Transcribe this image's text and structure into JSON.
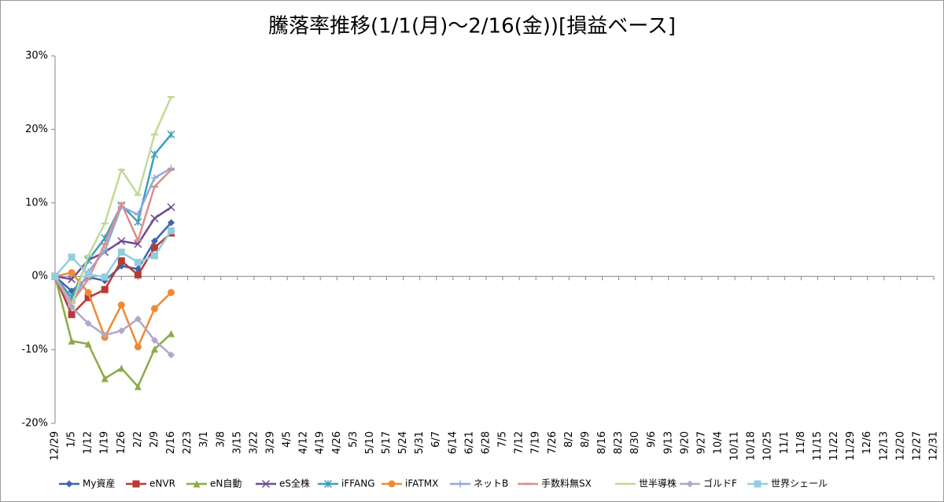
{
  "chart_data": {
    "type": "line",
    "title": "騰落率推移(1/1(月)～2/16(金))[損益ベース]",
    "categories": [
      "12/29",
      "1/5",
      "1/12",
      "1/19",
      "1/26",
      "2/2",
      "2/9",
      "2/16",
      "2/23",
      "3/1",
      "3/8",
      "3/15",
      "3/22",
      "3/29",
      "4/5",
      "4/12",
      "4/19",
      "4/26",
      "5/3",
      "5/10",
      "5/17",
      "5/24",
      "5/31",
      "6/7",
      "6/14",
      "6/21",
      "6/28",
      "7/5",
      "7/12",
      "7/19",
      "7/26",
      "8/2",
      "8/9",
      "8/16",
      "8/23",
      "8/30",
      "9/6",
      "9/13",
      "9/20",
      "9/27",
      "10/4",
      "10/11",
      "10/18",
      "10/25",
      "11/1",
      "11/8",
      "11/15",
      "11/22",
      "11/29",
      "12/6",
      "12/13",
      "12/20",
      "12/27",
      "12/31"
    ],
    "ylim": [
      -20,
      30
    ],
    "yticks": [
      {
        "value": -20,
        "label": "-20%"
      },
      {
        "value": -10,
        "label": "-10%"
      },
      {
        "value": 0,
        "label": "0%"
      },
      {
        "value": 10,
        "label": "10%"
      },
      {
        "value": 20,
        "label": "20%"
      },
      {
        "value": 30,
        "label": "30%"
      }
    ],
    "legend": "bottom",
    "series": [
      {
        "name": "My資産",
        "color": "#3a66b0",
        "marker": "diamond",
        "values": [
          0,
          -2.0,
          -0.1,
          -0.6,
          1.4,
          1.0,
          4.8,
          7.3,
          null,
          null,
          null,
          null,
          null,
          null,
          null,
          null,
          null,
          null,
          null,
          null,
          null,
          null,
          null,
          null,
          null,
          null,
          null,
          null,
          null,
          null,
          null,
          null,
          null,
          null,
          null,
          null,
          null,
          null,
          null,
          null,
          null,
          null,
          null,
          null,
          null,
          null,
          null,
          null,
          null,
          null,
          null,
          null,
          null,
          null
        ]
      },
      {
        "name": "eNVR",
        "color": "#b83a36",
        "marker": "square",
        "values": [
          0,
          -5.2,
          -2.9,
          -1.8,
          2.1,
          0.2,
          3.9,
          5.9,
          null,
          null,
          null,
          null,
          null,
          null,
          null,
          null,
          null,
          null,
          null,
          null,
          null,
          null,
          null,
          null,
          null,
          null,
          null,
          null,
          null,
          null,
          null,
          null,
          null,
          null,
          null,
          null,
          null,
          null,
          null,
          null,
          null,
          null,
          null,
          null,
          null,
          null,
          null,
          null,
          null,
          null,
          null,
          null,
          null,
          null
        ]
      },
      {
        "name": "eN自動",
        "color": "#8aac45",
        "marker": "triangle",
        "values": [
          0,
          -8.8,
          -9.2,
          -13.9,
          -12.5,
          -15.0,
          -9.9,
          -7.8,
          null,
          null,
          null,
          null,
          null,
          null,
          null,
          null,
          null,
          null,
          null,
          null,
          null,
          null,
          null,
          null,
          null,
          null,
          null,
          null,
          null,
          null,
          null,
          null,
          null,
          null,
          null,
          null,
          null,
          null,
          null,
          null,
          null,
          null,
          null,
          null,
          null,
          null,
          null,
          null,
          null,
          null,
          null,
          null,
          null,
          null
        ]
      },
      {
        "name": "eS全株",
        "color": "#6e4b94",
        "marker": "x",
        "values": [
          0,
          -0.4,
          2.2,
          3.3,
          4.8,
          4.4,
          7.9,
          9.4,
          null,
          null,
          null,
          null,
          null,
          null,
          null,
          null,
          null,
          null,
          null,
          null,
          null,
          null,
          null,
          null,
          null,
          null,
          null,
          null,
          null,
          null,
          null,
          null,
          null,
          null,
          null,
          null,
          null,
          null,
          null,
          null,
          null,
          null,
          null,
          null,
          null,
          null,
          null,
          null,
          null,
          null,
          null,
          null,
          null,
          null
        ]
      },
      {
        "name": "iFFANG",
        "color": "#3aa0bb",
        "marker": "star",
        "values": [
          0,
          -2.9,
          2.2,
          5.2,
          9.7,
          7.4,
          16.6,
          19.3,
          null,
          null,
          null,
          null,
          null,
          null,
          null,
          null,
          null,
          null,
          null,
          null,
          null,
          null,
          null,
          null,
          null,
          null,
          null,
          null,
          null,
          null,
          null,
          null,
          null,
          null,
          null,
          null,
          null,
          null,
          null,
          null,
          null,
          null,
          null,
          null,
          null,
          null,
          null,
          null,
          null,
          null,
          null,
          null,
          null,
          null
        ]
      },
      {
        "name": "iFATMX",
        "color": "#ee8a35",
        "marker": "circle",
        "values": [
          0,
          0.5,
          -2.2,
          -8.3,
          -3.9,
          -9.6,
          -4.4,
          -2.2,
          null,
          null,
          null,
          null,
          null,
          null,
          null,
          null,
          null,
          null,
          null,
          null,
          null,
          null,
          null,
          null,
          null,
          null,
          null,
          null,
          null,
          null,
          null,
          null,
          null,
          null,
          null,
          null,
          null,
          null,
          null,
          null,
          null,
          null,
          null,
          null,
          null,
          null,
          null,
          null,
          null,
          null,
          null,
          null,
          null,
          null
        ]
      },
      {
        "name": "ネットB",
        "color": "#8fa9dc",
        "marker": "plus",
        "values": [
          0,
          -3.6,
          0.6,
          3.5,
          9.5,
          8.4,
          13.4,
          14.7,
          null,
          null,
          null,
          null,
          null,
          null,
          null,
          null,
          null,
          null,
          null,
          null,
          null,
          null,
          null,
          null,
          null,
          null,
          null,
          null,
          null,
          null,
          null,
          null,
          null,
          null,
          null,
          null,
          null,
          null,
          null,
          null,
          null,
          null,
          null,
          null,
          null,
          null,
          null,
          null,
          null,
          null,
          null,
          null,
          null,
          null
        ]
      },
      {
        "name": "手数料無SX",
        "color": "#dc8c8b",
        "marker": "dash",
        "values": [
          0,
          -3.6,
          -0.4,
          4.4,
          9.9,
          4.9,
          12.2,
          14.5,
          null,
          null,
          null,
          null,
          null,
          null,
          null,
          null,
          null,
          null,
          null,
          null,
          null,
          null,
          null,
          null,
          null,
          null,
          null,
          null,
          null,
          null,
          null,
          null,
          null,
          null,
          null,
          null,
          null,
          null,
          null,
          null,
          null,
          null,
          null,
          null,
          null,
          null,
          null,
          null,
          null,
          null,
          null,
          null,
          null,
          null
        ]
      },
      {
        "name": "世半導株",
        "color": "#c3d89a",
        "marker": "dash",
        "values": [
          0,
          -4.0,
          2.8,
          7.2,
          14.5,
          11.1,
          19.3,
          24.4,
          null,
          null,
          null,
          null,
          null,
          null,
          null,
          null,
          null,
          null,
          null,
          null,
          null,
          null,
          null,
          null,
          null,
          null,
          null,
          null,
          null,
          null,
          null,
          null,
          null,
          null,
          null,
          null,
          null,
          null,
          null,
          null,
          null,
          null,
          null,
          null,
          null,
          null,
          null,
          null,
          null,
          null,
          null,
          null,
          null,
          null
        ]
      },
      {
        "name": "ゴルドF",
        "color": "#b3a5cc",
        "marker": "diamond",
        "values": [
          0,
          -4.2,
          -6.4,
          -8.0,
          -7.4,
          -5.8,
          -8.7,
          -10.7,
          null,
          null,
          null,
          null,
          null,
          null,
          null,
          null,
          null,
          null,
          null,
          null,
          null,
          null,
          null,
          null,
          null,
          null,
          null,
          null,
          null,
          null,
          null,
          null,
          null,
          null,
          null,
          null,
          null,
          null,
          null,
          null,
          null,
          null,
          null,
          null,
          null,
          null,
          null,
          null,
          null,
          null,
          null,
          null,
          null,
          null
        ]
      },
      {
        "name": "世界シェール",
        "color": "#93cddd",
        "marker": "square",
        "values": [
          0,
          2.6,
          0.3,
          -0.1,
          3.3,
          1.9,
          2.8,
          6.2,
          null,
          null,
          null,
          null,
          null,
          null,
          null,
          null,
          null,
          null,
          null,
          null,
          null,
          null,
          null,
          null,
          null,
          null,
          null,
          null,
          null,
          null,
          null,
          null,
          null,
          null,
          null,
          null,
          null,
          null,
          null,
          null,
          null,
          null,
          null,
          null,
          null,
          null,
          null,
          null,
          null,
          null,
          null,
          null,
          null,
          null
        ]
      }
    ]
  }
}
